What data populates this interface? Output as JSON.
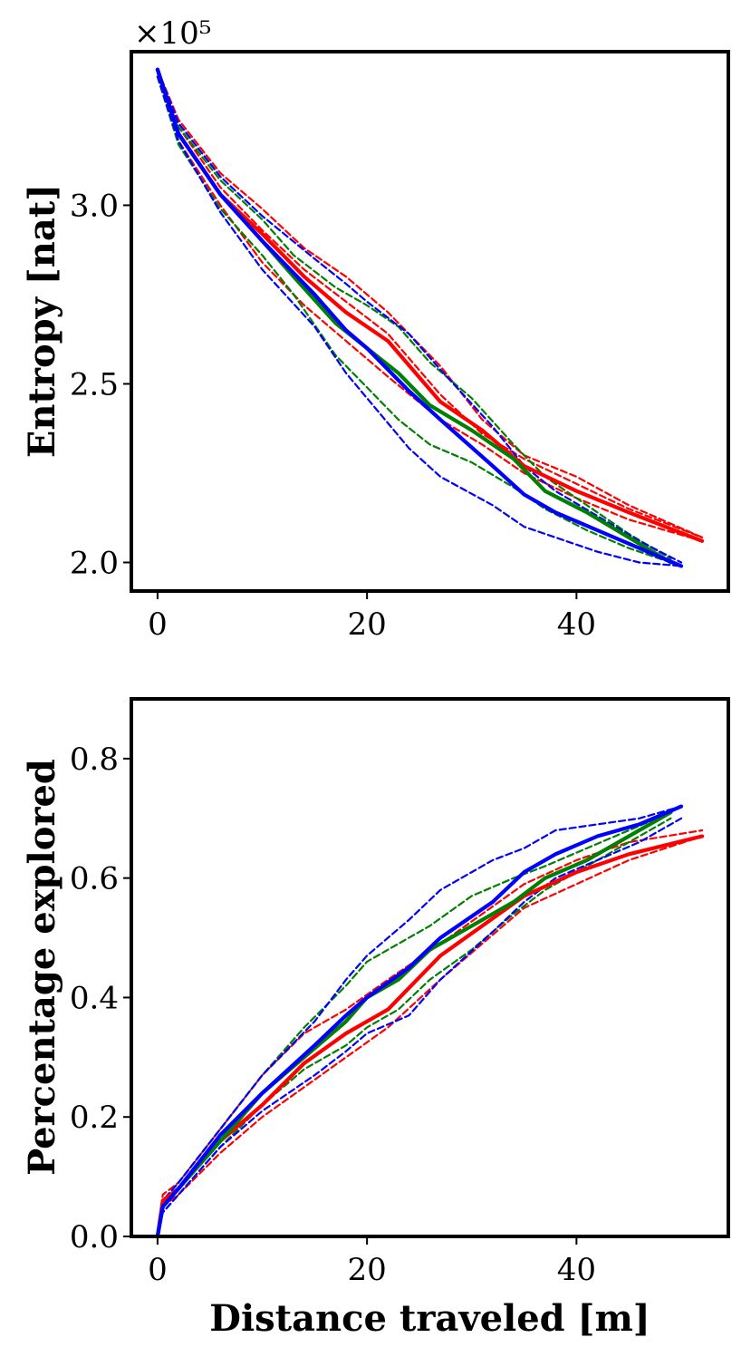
{
  "chart_data": [
    {
      "type": "line",
      "xlabel": "",
      "ylabel": "Entropy [nat]",
      "y_offset_label": "×10⁵",
      "xlim": [
        -2.5,
        54.5
      ],
      "ylim": [
        1.92,
        3.43
      ],
      "xticks": [
        0,
        20,
        40
      ],
      "xtick_labels": [
        "0",
        "20",
        "40"
      ],
      "yticks": [
        2.0,
        2.5,
        3.0
      ],
      "ytick_labels": [
        "2.0",
        "2.5",
        "3.0"
      ],
      "grid": false,
      "series": [
        {
          "color": "#ff0000",
          "style": "solid",
          "x": [
            0,
            2,
            6,
            10,
            14,
            18,
            22,
            27,
            31,
            35,
            40,
            45,
            52
          ],
          "y": [
            3.38,
            3.2,
            3.03,
            2.92,
            2.8,
            2.7,
            2.62,
            2.45,
            2.37,
            2.27,
            2.2,
            2.14,
            2.06
          ]
        },
        {
          "color": "#ff0000",
          "style": "dashed",
          "x": [
            0,
            2,
            6,
            10,
            14,
            18,
            22,
            27,
            31,
            35,
            40,
            45,
            52
          ],
          "y": [
            3.38,
            3.24,
            3.09,
            2.99,
            2.88,
            2.8,
            2.7,
            2.55,
            2.4,
            2.3,
            2.24,
            2.16,
            2.07
          ]
        },
        {
          "color": "#ff0000",
          "style": "dashed",
          "x": [
            0,
            2,
            6,
            10,
            14,
            18,
            22,
            27,
            31,
            35,
            40,
            45,
            52
          ],
          "y": [
            3.36,
            3.18,
            3.0,
            2.84,
            2.72,
            2.62,
            2.52,
            2.4,
            2.33,
            2.25,
            2.18,
            2.12,
            2.06
          ]
        },
        {
          "color": "#ff0000",
          "style": "dashed",
          "x": [
            0,
            2,
            6,
            10,
            14,
            18,
            22,
            27,
            31,
            35,
            40,
            45,
            52
          ],
          "y": [
            3.38,
            3.22,
            3.05,
            2.93,
            2.82,
            2.73,
            2.64,
            2.47,
            2.36,
            2.29,
            2.22,
            2.15,
            2.07
          ]
        },
        {
          "color": "#008000",
          "style": "solid",
          "x": [
            0,
            2,
            6,
            10,
            13,
            17,
            20,
            23,
            26,
            30,
            34,
            37,
            41,
            45,
            49
          ],
          "y": [
            3.38,
            3.2,
            3.03,
            2.9,
            2.8,
            2.67,
            2.6,
            2.53,
            2.44,
            2.37,
            2.29,
            2.2,
            2.14,
            2.07,
            2.0
          ]
        },
        {
          "color": "#008000",
          "style": "dashed",
          "x": [
            0,
            2,
            6,
            10,
            13,
            17,
            20,
            23,
            26,
            30,
            34,
            37,
            41,
            45,
            49
          ],
          "y": [
            3.38,
            3.22,
            3.07,
            2.96,
            2.86,
            2.77,
            2.72,
            2.66,
            2.56,
            2.46,
            2.33,
            2.24,
            2.16,
            2.08,
            2.01
          ]
        },
        {
          "color": "#008000",
          "style": "dashed",
          "x": [
            0,
            2,
            6,
            10,
            13,
            17,
            20,
            23,
            26,
            30,
            34,
            37,
            41,
            45,
            49
          ],
          "y": [
            3.36,
            3.17,
            2.99,
            2.86,
            2.75,
            2.58,
            2.49,
            2.4,
            2.33,
            2.28,
            2.21,
            2.15,
            2.09,
            2.04,
            2.0
          ]
        },
        {
          "color": "#0000ff",
          "style": "solid",
          "x": [
            0,
            2,
            6,
            10,
            15,
            18,
            20,
            24,
            27,
            32,
            35,
            38,
            42,
            46,
            50
          ],
          "y": [
            3.38,
            3.2,
            3.03,
            2.9,
            2.75,
            2.65,
            2.6,
            2.48,
            2.4,
            2.27,
            2.19,
            2.14,
            2.09,
            2.04,
            1.99
          ]
        },
        {
          "color": "#0000ff",
          "style": "dashed",
          "x": [
            0,
            2,
            6,
            10,
            15,
            18,
            20,
            24,
            27,
            32,
            35,
            38,
            42,
            46,
            50
          ],
          "y": [
            3.38,
            3.23,
            3.08,
            2.97,
            2.85,
            2.78,
            2.73,
            2.64,
            2.54,
            2.38,
            2.27,
            2.2,
            2.13,
            2.06,
            2.0
          ]
        },
        {
          "color": "#0000ff",
          "style": "dashed",
          "x": [
            0,
            2,
            6,
            10,
            15,
            18,
            20,
            24,
            27,
            32,
            35,
            38,
            42,
            46,
            50
          ],
          "y": [
            3.36,
            3.18,
            2.98,
            2.82,
            2.66,
            2.53,
            2.46,
            2.32,
            2.24,
            2.16,
            2.1,
            2.07,
            2.03,
            2.0,
            1.99
          ]
        }
      ]
    },
    {
      "type": "line",
      "xlabel": "Distance traveled [m]",
      "ylabel": "Percentage explored",
      "xlim": [
        -2.5,
        54.5
      ],
      "ylim": [
        0.0,
        0.9
      ],
      "xticks": [
        0,
        20,
        40
      ],
      "xtick_labels": [
        "0",
        "20",
        "40"
      ],
      "yticks": [
        0.0,
        0.2,
        0.4,
        0.6,
        0.8
      ],
      "ytick_labels": [
        "0.0",
        "0.2",
        "0.4",
        "0.6",
        "0.8"
      ],
      "grid": false,
      "series": [
        {
          "color": "#ff0000",
          "style": "solid",
          "x": [
            0,
            0.5,
            2,
            6,
            10,
            14,
            18,
            22,
            27,
            31,
            35,
            40,
            45,
            52
          ],
          "y": [
            0.0,
            0.06,
            0.08,
            0.16,
            0.22,
            0.29,
            0.34,
            0.38,
            0.47,
            0.52,
            0.57,
            0.61,
            0.64,
            0.67
          ]
        },
        {
          "color": "#ff0000",
          "style": "dashed",
          "x": [
            0,
            0.5,
            2,
            6,
            10,
            14,
            18,
            22,
            27,
            31,
            35,
            40,
            45,
            52
          ],
          "y": [
            0.0,
            0.07,
            0.09,
            0.18,
            0.27,
            0.34,
            0.38,
            0.43,
            0.49,
            0.54,
            0.59,
            0.63,
            0.66,
            0.68
          ]
        },
        {
          "color": "#ff0000",
          "style": "dashed",
          "x": [
            0,
            0.5,
            2,
            6,
            10,
            14,
            18,
            22,
            27,
            31,
            35,
            40,
            45,
            52
          ],
          "y": [
            0.0,
            0.05,
            0.07,
            0.14,
            0.2,
            0.25,
            0.3,
            0.35,
            0.43,
            0.49,
            0.55,
            0.59,
            0.63,
            0.67
          ]
        },
        {
          "color": "#008000",
          "style": "solid",
          "x": [
            0,
            0.5,
            2,
            6,
            10,
            14,
            18,
            20,
            23,
            26,
            30,
            34,
            37,
            41,
            45,
            49
          ],
          "y": [
            0.0,
            0.05,
            0.08,
            0.16,
            0.24,
            0.3,
            0.36,
            0.4,
            0.43,
            0.48,
            0.52,
            0.56,
            0.6,
            0.63,
            0.67,
            0.71
          ]
        },
        {
          "color": "#008000",
          "style": "dashed",
          "x": [
            0,
            0.5,
            2,
            6,
            10,
            14,
            18,
            20,
            23,
            26,
            30,
            34,
            37,
            41,
            45,
            49
          ],
          "y": [
            0.0,
            0.06,
            0.09,
            0.18,
            0.27,
            0.35,
            0.42,
            0.46,
            0.49,
            0.52,
            0.57,
            0.6,
            0.62,
            0.65,
            0.68,
            0.71
          ]
        },
        {
          "color": "#008000",
          "style": "dashed",
          "x": [
            0,
            0.5,
            2,
            6,
            10,
            14,
            18,
            20,
            23,
            26,
            30,
            34,
            37,
            41,
            45,
            49
          ],
          "y": [
            0.0,
            0.04,
            0.07,
            0.15,
            0.22,
            0.28,
            0.32,
            0.35,
            0.38,
            0.43,
            0.48,
            0.54,
            0.58,
            0.62,
            0.66,
            0.7
          ]
        },
        {
          "color": "#0000ff",
          "style": "solid",
          "x": [
            0,
            0.5,
            2,
            6,
            10,
            15,
            18,
            20,
            24,
            27,
            32,
            35,
            38,
            42,
            46,
            50
          ],
          "y": [
            0.0,
            0.05,
            0.08,
            0.17,
            0.24,
            0.32,
            0.37,
            0.4,
            0.45,
            0.5,
            0.56,
            0.61,
            0.64,
            0.67,
            0.69,
            0.72
          ]
        },
        {
          "color": "#0000ff",
          "style": "dashed",
          "x": [
            0,
            0.5,
            2,
            6,
            10,
            15,
            18,
            20,
            24,
            27,
            32,
            35,
            38,
            42,
            46,
            50
          ],
          "y": [
            0.0,
            0.06,
            0.09,
            0.18,
            0.27,
            0.36,
            0.43,
            0.47,
            0.53,
            0.58,
            0.63,
            0.65,
            0.68,
            0.69,
            0.7,
            0.72
          ]
        },
        {
          "color": "#0000ff",
          "style": "dashed",
          "x": [
            0,
            0.5,
            2,
            6,
            10,
            15,
            18,
            20,
            24,
            27,
            32,
            35,
            38,
            42,
            46,
            50
          ],
          "y": [
            0.0,
            0.04,
            0.07,
            0.15,
            0.21,
            0.27,
            0.31,
            0.34,
            0.37,
            0.43,
            0.51,
            0.56,
            0.6,
            0.63,
            0.66,
            0.7
          ]
        }
      ]
    }
  ]
}
